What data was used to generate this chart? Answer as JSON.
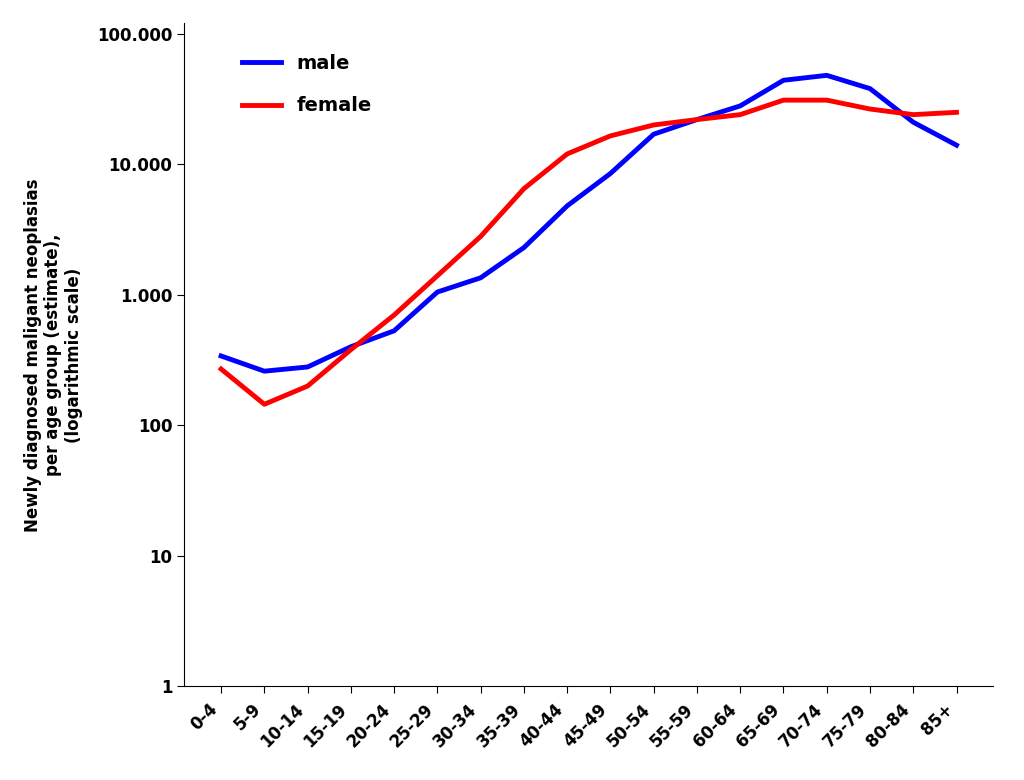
{
  "age_groups": [
    "0-4",
    "5-9",
    "10-14",
    "15-19",
    "20-24",
    "25-29",
    "30-34",
    "35-39",
    "40-44",
    "45-49",
    "50-54",
    "55-59",
    "60-64",
    "65-69",
    "70-74",
    "75-79",
    "80-84",
    "85+"
  ],
  "male": [
    340,
    260,
    280,
    400,
    530,
    1050,
    1350,
    2300,
    4800,
    8500,
    17000,
    22000,
    28000,
    44000,
    48000,
    38000,
    21000,
    14000
  ],
  "female": [
    270,
    145,
    200,
    380,
    700,
    1400,
    2800,
    6500,
    12000,
    16500,
    20000,
    22000,
    24000,
    31000,
    31000,
    26500,
    24000,
    25000
  ],
  "male_color": "#0000FF",
  "female_color": "#FF0000",
  "line_width": 3.5,
  "ylabel": "Newly diagnosed maligant neoplasias\nper age group (estimate),\n(logarithmic scale)",
  "legend_labels": [
    "male",
    "female"
  ],
  "yticks": [
    1,
    10,
    100,
    1000,
    10000,
    100000
  ],
  "ytick_labels": [
    "1",
    "10",
    "100",
    "1.000",
    "10.000",
    "100.000"
  ],
  "ylim": [
    1,
    120000
  ],
  "background_color": "#ffffff",
  "label_fontsize": 12,
  "tick_fontsize": 12,
  "legend_fontsize": 14
}
